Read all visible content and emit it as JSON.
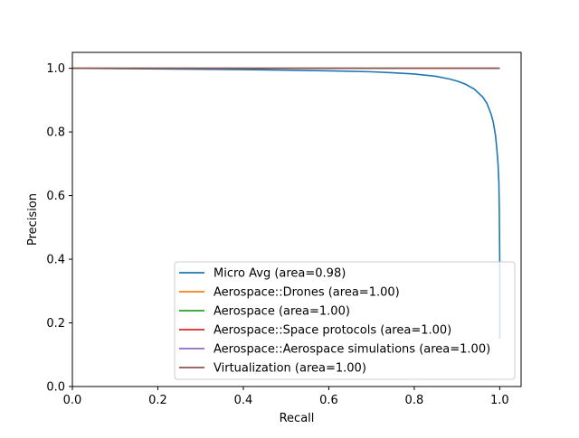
{
  "chart_data": {
    "type": "line",
    "title": "",
    "xlabel": "Recall",
    "ylabel": "Precision",
    "xlim": [
      0.0,
      1.05
    ],
    "ylim": [
      0.0,
      1.05
    ],
    "xticks": [
      "0.0",
      "0.2",
      "0.4",
      "0.6",
      "0.8",
      "1.0"
    ],
    "yticks": [
      "0.0",
      "0.2",
      "0.4",
      "0.6",
      "0.8",
      "1.0"
    ],
    "grid": false,
    "legend_position": "lower-right",
    "series": [
      {
        "name": "Micro Avg (area=0.98)",
        "color": "#1f77b4",
        "x": [
          0.0,
          0.1,
          0.2,
          0.3,
          0.4,
          0.5,
          0.6,
          0.7,
          0.75,
          0.8,
          0.85,
          0.88,
          0.9,
          0.92,
          0.94,
          0.96,
          0.97,
          0.98,
          0.985,
          0.99,
          0.993,
          0.996,
          0.998,
          0.999,
          1.0,
          1.0,
          1.0
        ],
        "y": [
          1.0,
          0.999,
          0.998,
          0.997,
          0.996,
          0.994,
          0.992,
          0.989,
          0.986,
          0.982,
          0.975,
          0.967,
          0.96,
          0.95,
          0.935,
          0.91,
          0.89,
          0.855,
          0.83,
          0.79,
          0.75,
          0.7,
          0.64,
          0.55,
          0.4,
          0.3,
          0.15
        ]
      },
      {
        "name": "Aerospace::Drones (area=1.00)",
        "color": "#ff7f0e",
        "x": [
          0.0,
          1.0
        ],
        "y": [
          1.0,
          1.0
        ]
      },
      {
        "name": "Aerospace (area=1.00)",
        "color": "#2ca02c",
        "x": [
          0.0,
          1.0
        ],
        "y": [
          1.0,
          1.0
        ]
      },
      {
        "name": "Aerospace::Space protocols (area=1.00)",
        "color": "#d62728",
        "x": [
          0.0,
          1.0
        ],
        "y": [
          1.0,
          1.0
        ]
      },
      {
        "name": "Aerospace::Aerospace simulations (area=1.00)",
        "color": "#9467bd",
        "x": [
          0.0,
          1.0
        ],
        "y": [
          1.0,
          1.0
        ]
      },
      {
        "name": "Virtualization (area=1.00)",
        "color": "#8c564b",
        "x": [
          0.0,
          1.0
        ],
        "y": [
          1.0,
          1.0
        ]
      }
    ]
  }
}
